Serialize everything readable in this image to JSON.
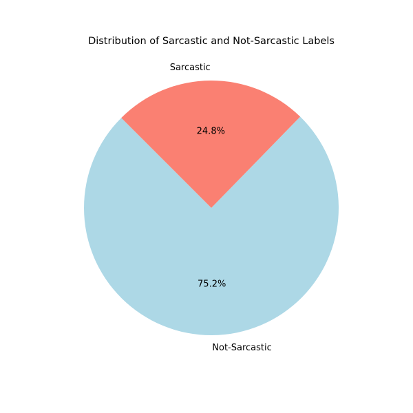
{
  "chart_data": {
    "type": "pie",
    "title": "Distribution of Sarcastic and Not-Sarcastic Labels",
    "categories": [
      "Not-Sarcastic",
      "Sarcastic"
    ],
    "values": [
      75.2,
      24.8
    ],
    "value_labels": [
      "75.2%",
      "24.8%"
    ],
    "colors": [
      "#add8e6",
      "#fa8072"
    ],
    "start_angle_deg": 135,
    "direction": "counterclockwise",
    "legend": "none"
  }
}
